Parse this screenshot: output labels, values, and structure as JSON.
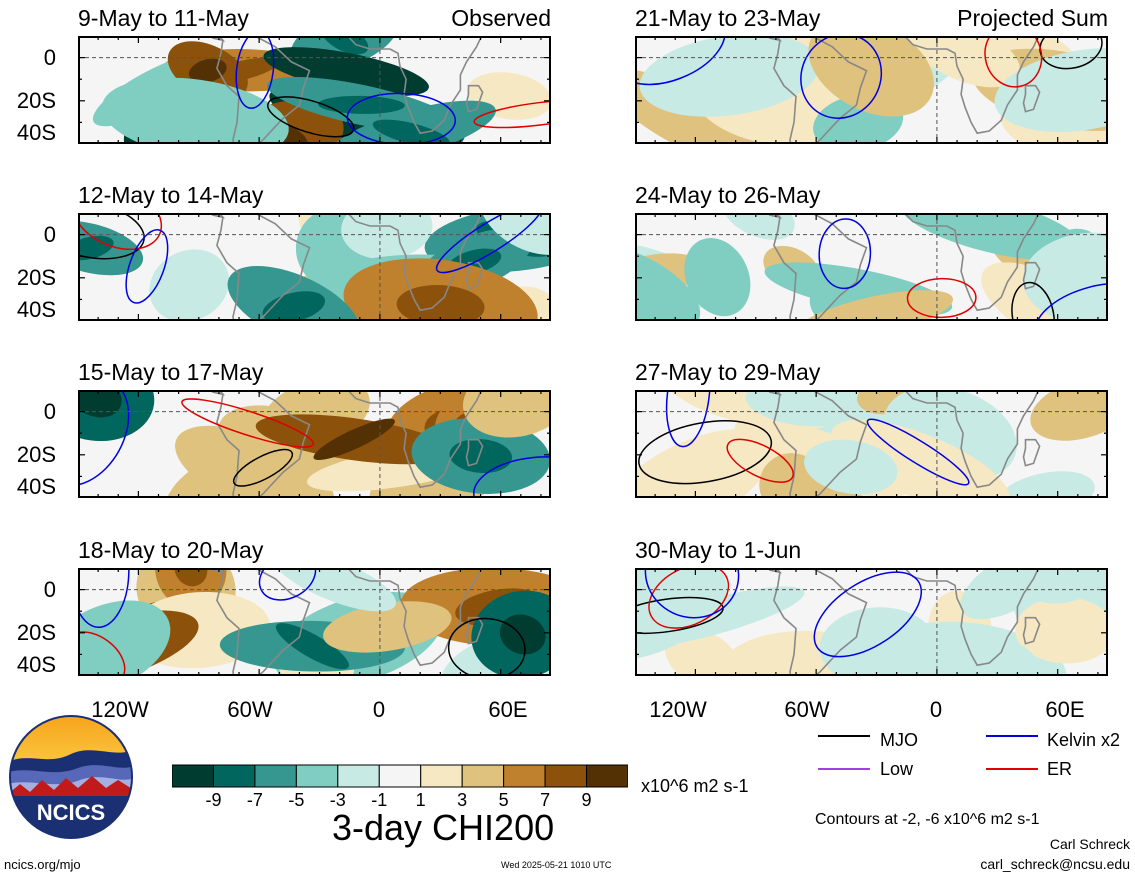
{
  "chart_data": {
    "type": "heatmap",
    "title": "3-day CHI200",
    "units": "x10^6 m2 s-1",
    "variable": "CHI200",
    "contour_note": "Contours at -2, -6 x10^6 m2 s-1",
    "lat_ticks": [
      "0",
      "20S",
      "40S"
    ],
    "lon_ticks": [
      "120W",
      "60W",
      "0",
      "60E"
    ],
    "colorbar": {
      "labels": [
        "-9",
        "-7",
        "-5",
        "-3",
        "-1",
        "1",
        "3",
        "5",
        "7",
        "9"
      ],
      "colors": [
        "#003c30",
        "#01665e",
        "#35978f",
        "#80cdc1",
        "#c7eae5",
        "#f5f5f5",
        "#f6e8c3",
        "#dfc27d",
        "#bf812d",
        "#8c510a",
        "#543005"
      ]
    },
    "line_legend": [
      {
        "label": "MJO",
        "color": "#000000"
      },
      {
        "label": "Low",
        "color": "#a040e0"
      },
      {
        "label": "Kelvin x2",
        "color": "#0000e0"
      },
      {
        "label": "ER",
        "color": "#e00000"
      }
    ],
    "panels": [
      {
        "title": "9-May to 11-May",
        "tag": "Observed",
        "column": 0,
        "row": 0,
        "intensity": 1.0,
        "seed": 3
      },
      {
        "title": "12-May to 14-May",
        "tag": "",
        "column": 0,
        "row": 1,
        "intensity": 0.85,
        "seed": 7
      },
      {
        "title": "15-May to 17-May",
        "tag": "",
        "column": 0,
        "row": 2,
        "intensity": 0.9,
        "seed": 11
      },
      {
        "title": "18-May to 20-May",
        "tag": "",
        "column": 0,
        "row": 3,
        "intensity": 0.9,
        "seed": 19
      },
      {
        "title": "21-May to 23-May",
        "tag": "Projected Sum",
        "column": 1,
        "row": 0,
        "intensity": 0.45,
        "seed": 23
      },
      {
        "title": "24-May to 26-May",
        "tag": "",
        "column": 1,
        "row": 1,
        "intensity": 0.45,
        "seed": 29
      },
      {
        "title": "27-May to 29-May",
        "tag": "",
        "column": 1,
        "row": 2,
        "intensity": 0.35,
        "seed": 31
      },
      {
        "title": "30-May to 1-Jun",
        "tag": "",
        "column": 1,
        "row": 3,
        "intensity": 0.3,
        "seed": 37
      }
    ]
  },
  "logo": {
    "text": "NCICS"
  },
  "footer": {
    "url": "ncics.org/mjo",
    "timestamp": "Wed 2025-05-21 1010 UTC",
    "author": "Carl Schreck",
    "email": "carl_schreck@ncsu.edu"
  }
}
